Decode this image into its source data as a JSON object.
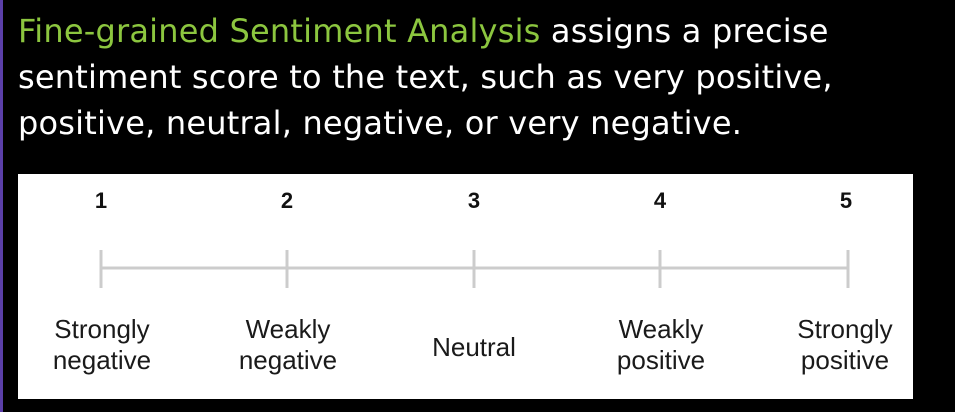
{
  "heading": {
    "highlight": "Fine-grained Sentiment Analysis",
    "rest": " assigns a precise sentiment score to the text, such as very positive, positive, neutral, negative, or very negative.",
    "highlight_color": "#8cc63f",
    "text_color": "#ffffff"
  },
  "scale": {
    "line_color": "#cccccc",
    "points": [
      {
        "number": "1",
        "label_lines": [
          "Strongly",
          "negative"
        ]
      },
      {
        "number": "2",
        "label_lines": [
          "Weakly",
          "negative"
        ]
      },
      {
        "number": "3",
        "label_lines": [
          "Neutral"
        ]
      },
      {
        "number": "4",
        "label_lines": [
          "Weakly",
          "positive"
        ]
      },
      {
        "number": "5",
        "label_lines": [
          "Strongly",
          "positive"
        ]
      }
    ]
  }
}
